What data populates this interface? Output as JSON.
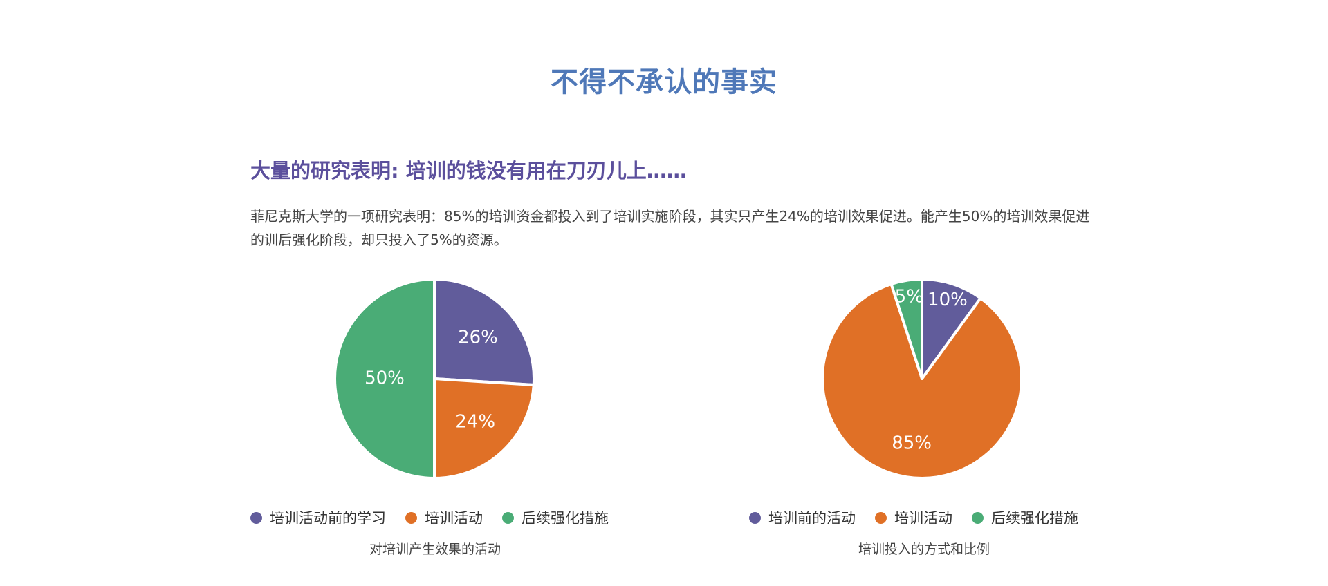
{
  "page": {
    "title": "不得不承认的事实",
    "heading": "大量的研究表明: 培训的钱没有用在刀刃儿上……",
    "intro": "菲尼克斯大学的一项研究表明：85%的培训资金都投入到了培训实施阶段，其实只产生24%的培训效果促进。能产生50%的培训效果促进的训后强化阶段，却只投入了5%的资源。"
  },
  "colors": {
    "title": "#4f78b8",
    "heading": "#5b4f9c",
    "purple": "#615c9b",
    "orange": "#e07026",
    "green": "#4aac76"
  },
  "chart_data": [
    {
      "type": "pie",
      "title": "对培训产生效果的活动",
      "slices": [
        {
          "label": "培训活动前的学习",
          "value": 26,
          "display": "26%",
          "color": "#615c9b"
        },
        {
          "label": "培训活动",
          "value": 24,
          "display": "24%",
          "color": "#e07026"
        },
        {
          "label": "后续强化措施",
          "value": 50,
          "display": "50%",
          "color": "#4aac76"
        }
      ],
      "legend_position": "bottom"
    },
    {
      "type": "pie",
      "title": "培训投入的方式和比例",
      "slices": [
        {
          "label": "培训前的活动",
          "value": 10,
          "display": "10%",
          "color": "#615c9b"
        },
        {
          "label": "培训活动",
          "value": 85,
          "display": "85%",
          "color": "#e07026"
        },
        {
          "label": "后续强化措施",
          "value": 5,
          "display": "5%",
          "color": "#4aac76"
        }
      ],
      "legend_position": "bottom"
    }
  ]
}
